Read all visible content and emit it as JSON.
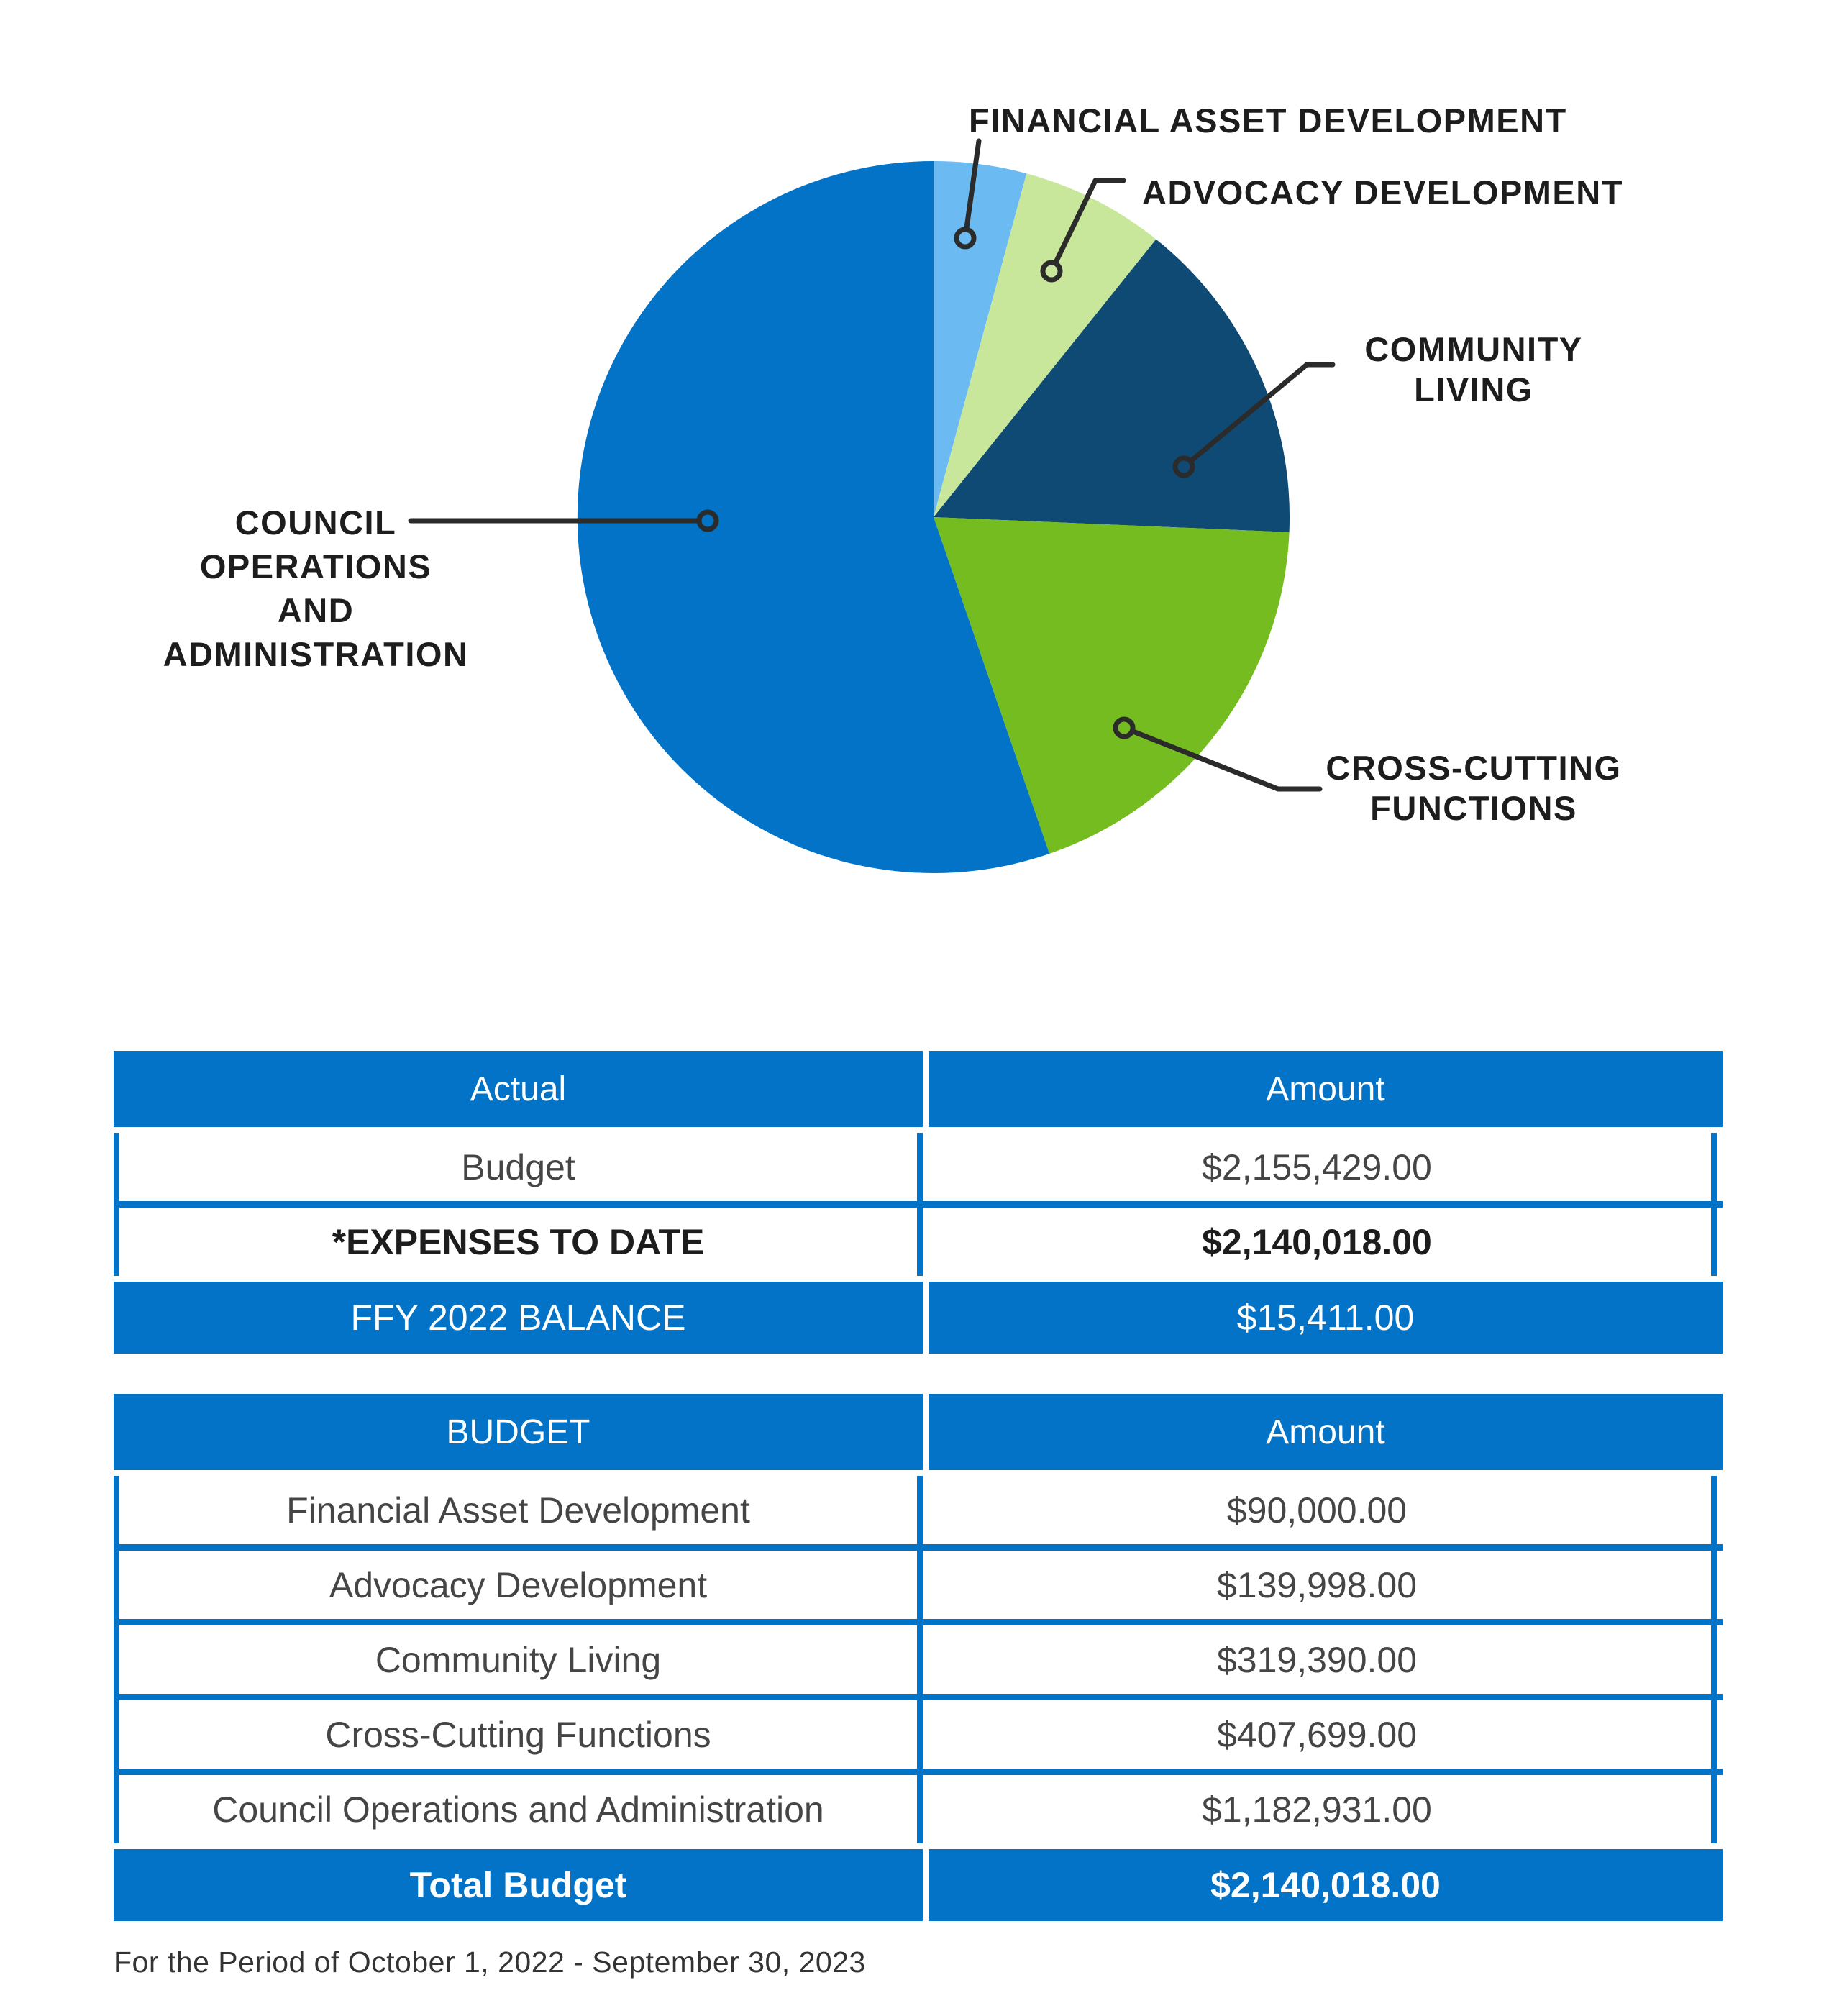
{
  "chart_data": {
    "type": "pie",
    "title": "",
    "start_angle": "12-oclock",
    "direction": "clockwise",
    "total": 2140018,
    "slices": [
      {
        "id": "financial-asset-development",
        "label": "FINANCIAL ASSET DEVELOPMENT",
        "value": 90000,
        "color": "#6CBAF2"
      },
      {
        "id": "advocacy-development",
        "label": "ADVOCACY DEVELOPMENT",
        "value": 139998,
        "color": "#C9E79A"
      },
      {
        "id": "community-living",
        "label": "COMMUNITY LIVING",
        "value": 319390,
        "color": "#0F4A75"
      },
      {
        "id": "cross-cutting-functions",
        "label": "CROSS-CUTTING FUNCTIONS",
        "value": 407699,
        "color": "#74BC1F"
      },
      {
        "id": "council-operations-and-administration",
        "label": "COUNCIL OPERATIONS AND ADMINISTRATION",
        "value": 1182931,
        "color": "#0273C7"
      }
    ]
  },
  "labels": {
    "financial": "FINANCIAL ASSET DEVELOPMENT",
    "advocacy": "ADVOCACY DEVELOPMENT",
    "community_line1": "COMMUNITY",
    "community_line2": "LIVING",
    "cross_line1": "CROSS-CUTTING",
    "cross_line2": "FUNCTIONS",
    "council_line1": "COUNCIL",
    "council_line2": "OPERATIONS AND",
    "council_line3": "ADMINISTRATION"
  },
  "table_actual": {
    "headers": [
      "Actual",
      "Amount"
    ],
    "rows": [
      {
        "label": "Budget",
        "amount": "$2,155,429.00"
      },
      {
        "label": "*EXPENSES TO DATE",
        "amount": "$2,140,018.00"
      },
      {
        "label": "FFY 2022 BALANCE",
        "amount": "$15,411.00"
      }
    ]
  },
  "table_budget": {
    "headers": [
      "BUDGET",
      "Amount"
    ],
    "rows": [
      {
        "label": "Financial Asset Development",
        "amount": "$90,000.00"
      },
      {
        "label": "Advocacy Development",
        "amount": "$139,998.00"
      },
      {
        "label": "Community Living",
        "amount": "$319,390.00"
      },
      {
        "label": "Cross-Cutting Functions",
        "amount": "$407,699.00"
      },
      {
        "label": "Council Operations and Administration",
        "amount": "$1,182,931.00"
      },
      {
        "label": "Total Budget",
        "amount": "$2,140,018.00"
      }
    ]
  },
  "footer": {
    "text": "For the Period of October 1, 2022 - September 30, 2023"
  },
  "colors": {
    "primary_blue": "#0273C7",
    "light_blue": "#6CBAF2",
    "light_green": "#C9E79A",
    "dark_navy": "#0F4A75",
    "green": "#74BC1F",
    "leader_line": "#2b2b2b"
  }
}
